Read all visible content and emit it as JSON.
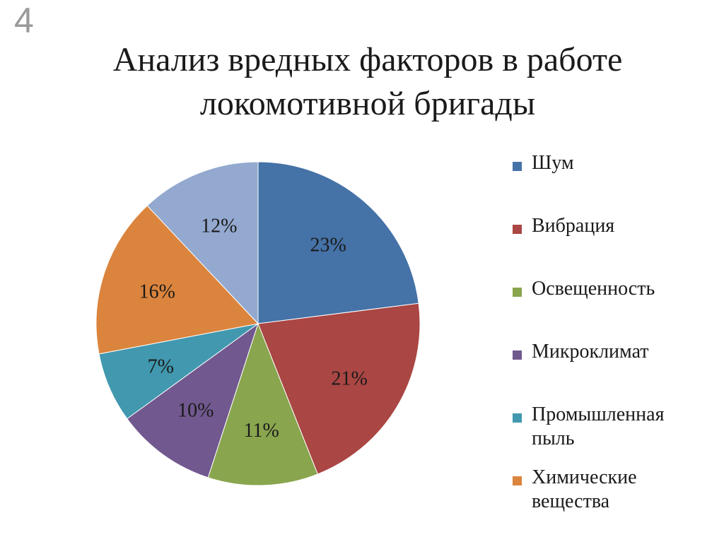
{
  "slide_number": "4",
  "title_lines": [
    "Анализ вредных факторов в работе",
    "локомотивной бригады"
  ],
  "chart_data": {
    "type": "pie",
    "title": "Анализ вредных факторов в работе локомотивной бригады",
    "categories": [
      "Шум",
      "Вибрация",
      "Освещенность",
      "Микроклимат",
      "Промышленная пыль",
      "Химические вещества",
      ""
    ],
    "values": [
      23,
      21,
      11,
      10,
      7,
      16,
      12
    ],
    "data_labels": [
      "23%",
      "21%",
      "11%",
      "10%",
      "7%",
      "16%",
      "12%"
    ],
    "colors": [
      "#4572a7",
      "#aa4643",
      "#89a54e",
      "#71588f",
      "#4198af",
      "#db843d",
      "#93a9cf"
    ],
    "legend_position": "right",
    "start_angle": "12 o'clock, clockwise"
  },
  "legend": [
    {
      "lines": [
        "Шум"
      ],
      "color": "#4572a7"
    },
    {
      "lines": [
        "Вибрация"
      ],
      "color": "#aa4643"
    },
    {
      "lines": [
        "Освещенность"
      ],
      "color": "#89a54e"
    },
    {
      "lines": [
        "Микроклимат"
      ],
      "color": "#71588f"
    },
    {
      "lines": [
        "Промышленная",
        "пыль"
      ],
      "color": "#4198af"
    },
    {
      "lines": [
        "Химические",
        "вещества"
      ],
      "color": "#db843d"
    }
  ]
}
